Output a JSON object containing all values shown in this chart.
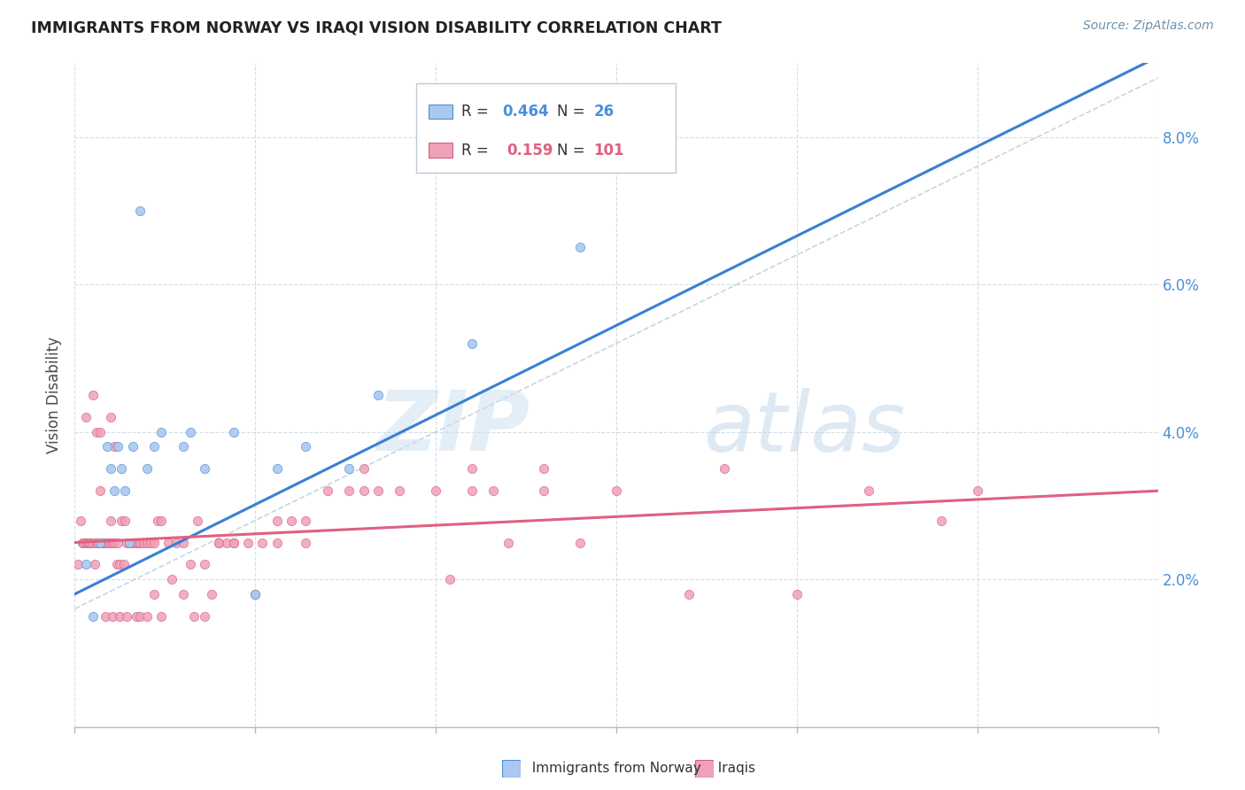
{
  "title": "IMMIGRANTS FROM NORWAY VS IRAQI VISION DISABILITY CORRELATION CHART",
  "source": "Source: ZipAtlas.com",
  "ylabel": "Vision Disability",
  "xlim": [
    0.0,
    15.0
  ],
  "ylim": [
    0.0,
    9.0
  ],
  "yticks": [
    2.0,
    4.0,
    6.0,
    8.0
  ],
  "ytick_labels": [
    "2.0%",
    "4.0%",
    "6.0%",
    "8.0%"
  ],
  "watermark": "ZIPatlas",
  "legend_norway_r": "0.464",
  "legend_norway_n": "26",
  "legend_iraqi_r": "0.159",
  "legend_iraqi_n": "101",
  "norway_color": "#aac8f0",
  "norway_edge_color": "#5090d0",
  "iraqi_color": "#f0a0b8",
  "iraqi_edge_color": "#d06080",
  "line_norway_color": "#3a7fd5",
  "line_iraqi_color": "#e06080",
  "dashed_line_color": "#b8ccd8",
  "norway_x": [
    0.15,
    0.25,
    0.35,
    0.45,
    0.5,
    0.55,
    0.6,
    0.65,
    0.7,
    0.75,
    0.8,
    0.9,
    1.0,
    1.1,
    1.2,
    1.5,
    1.6,
    1.8,
    2.2,
    2.5,
    2.8,
    3.2,
    3.8,
    4.2,
    5.5,
    7.0
  ],
  "norway_y": [
    2.2,
    1.5,
    2.5,
    3.8,
    3.5,
    3.2,
    3.8,
    3.5,
    3.2,
    2.5,
    3.8,
    7.0,
    3.5,
    3.8,
    4.0,
    3.8,
    4.0,
    3.5,
    4.0,
    1.8,
    3.5,
    3.8,
    3.5,
    4.5,
    5.2,
    6.5
  ],
  "iraqi_x": [
    0.05,
    0.08,
    0.1,
    0.12,
    0.15,
    0.15,
    0.18,
    0.2,
    0.22,
    0.25,
    0.25,
    0.28,
    0.3,
    0.3,
    0.32,
    0.35,
    0.38,
    0.4,
    0.42,
    0.45,
    0.48,
    0.5,
    0.5,
    0.52,
    0.55,
    0.55,
    0.58,
    0.6,
    0.62,
    0.65,
    0.68,
    0.7,
    0.72,
    0.75,
    0.78,
    0.8,
    0.85,
    0.88,
    0.9,
    0.95,
    1.0,
    1.05,
    1.1,
    1.15,
    1.2,
    1.3,
    1.4,
    1.5,
    1.6,
    1.7,
    1.8,
    1.9,
    2.0,
    2.1,
    2.2,
    2.4,
    2.6,
    2.8,
    3.0,
    3.2,
    3.5,
    3.8,
    4.0,
    4.2,
    4.5,
    5.0,
    5.2,
    5.5,
    5.8,
    6.0,
    6.5,
    7.0,
    7.5,
    8.5,
    9.0,
    10.0,
    11.0,
    12.0,
    12.5,
    0.35,
    0.42,
    0.52,
    0.62,
    0.72,
    0.85,
    0.9,
    1.0,
    1.1,
    1.2,
    1.35,
    1.5,
    1.65,
    1.8,
    2.0,
    2.2,
    2.5,
    2.8,
    3.2,
    4.0,
    5.5,
    6.5
  ],
  "iraqi_y": [
    2.2,
    2.8,
    2.5,
    2.5,
    2.5,
    4.2,
    2.5,
    2.5,
    2.5,
    2.5,
    4.5,
    2.2,
    2.5,
    4.0,
    2.5,
    4.0,
    2.5,
    2.5,
    2.5,
    2.5,
    2.5,
    2.8,
    4.2,
    2.5,
    2.5,
    3.8,
    2.2,
    2.5,
    2.2,
    2.8,
    2.2,
    2.8,
    2.5,
    2.5,
    2.5,
    2.5,
    2.5,
    2.5,
    2.5,
    2.5,
    2.5,
    2.5,
    2.5,
    2.8,
    2.8,
    2.5,
    2.5,
    2.5,
    2.2,
    2.8,
    2.2,
    1.8,
    2.5,
    2.5,
    2.5,
    2.5,
    2.5,
    2.8,
    2.8,
    2.8,
    3.2,
    3.2,
    3.2,
    3.2,
    3.2,
    3.2,
    2.0,
    3.2,
    3.2,
    2.5,
    3.2,
    2.5,
    3.2,
    1.8,
    3.5,
    1.8,
    3.2,
    2.8,
    3.2,
    3.2,
    1.5,
    1.5,
    1.5,
    1.5,
    1.5,
    1.5,
    1.5,
    1.8,
    1.5,
    2.0,
    1.8,
    1.5,
    1.5,
    2.5,
    2.5,
    1.8,
    2.5,
    2.5,
    3.5,
    3.5,
    3.5
  ],
  "background_color": "#ffffff",
  "grid_color": "#d4dde6"
}
